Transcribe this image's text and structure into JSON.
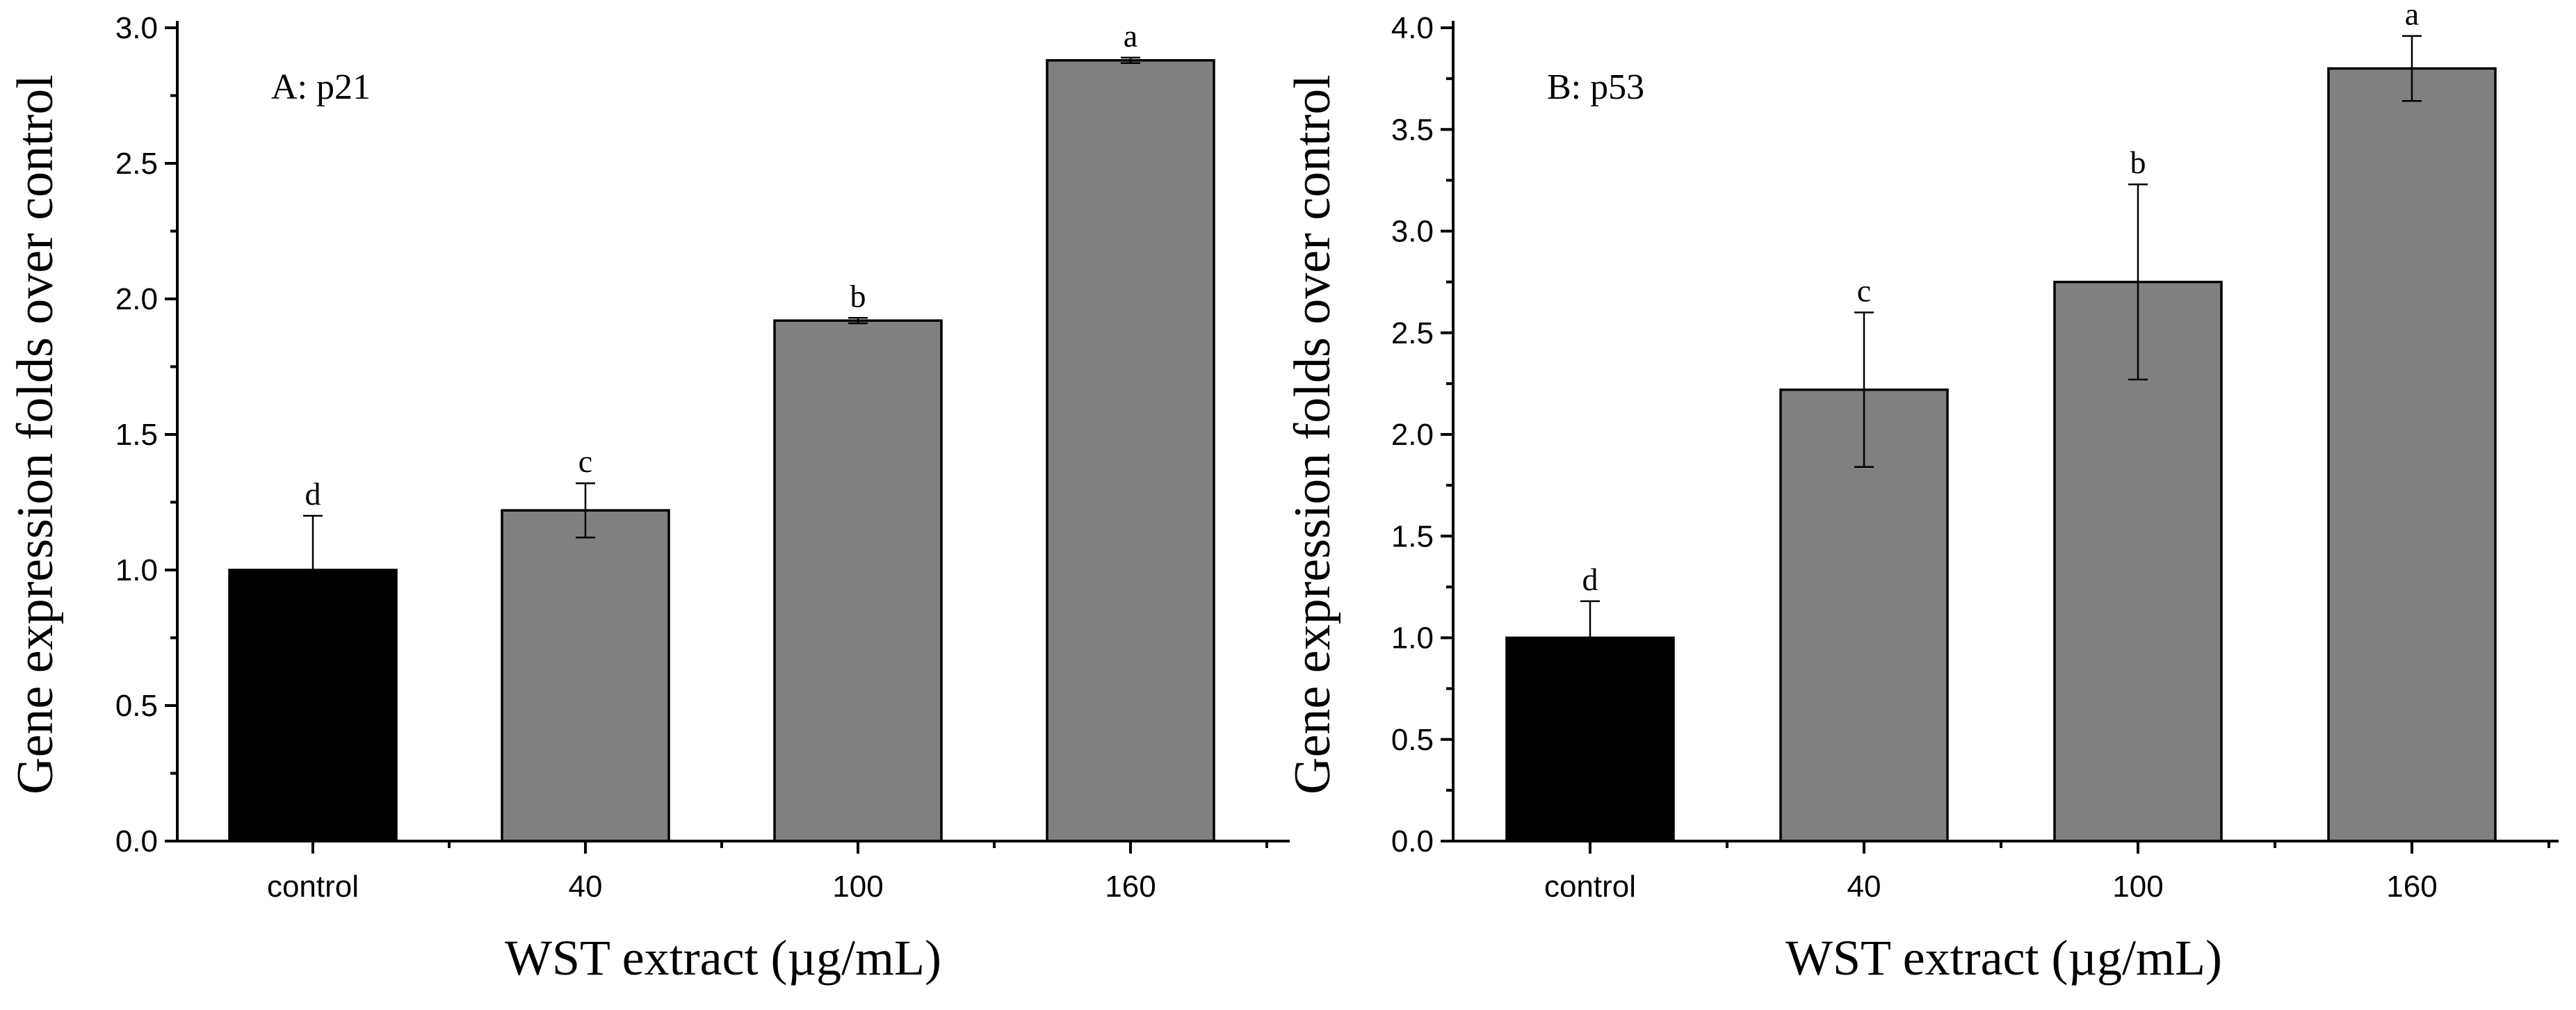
{
  "chart_data": [
    {
      "type": "bar",
      "panel_label": "A: p21",
      "xlabel": "WST extract (µg/mL)",
      "ylabel": "Gene expression folds over control",
      "categories": [
        "control",
        "40",
        "100",
        "160"
      ],
      "values": [
        1.0,
        1.22,
        1.92,
        2.88
      ],
      "errors": [
        0.2,
        0.1,
        0.01,
        0.01
      ],
      "significance": [
        "d",
        "c",
        "b",
        "a"
      ],
      "bar_colors": [
        "#000000",
        "#808080",
        "#808080",
        "#808080"
      ],
      "ylim": [
        0,
        3.0
      ],
      "yticks": [
        0.0,
        0.5,
        1.0,
        1.5,
        2.0,
        2.5,
        3.0
      ],
      "ytick_labels": [
        "0.0",
        "0.5",
        "1.0",
        "1.5",
        "2.0",
        "2.5",
        "3.0"
      ]
    },
    {
      "type": "bar",
      "panel_label": "B: p53",
      "xlabel": "WST extract (µg/mL)",
      "ylabel": "Gene expression folds over control",
      "categories": [
        "control",
        "40",
        "100",
        "160"
      ],
      "values": [
        1.0,
        2.22,
        2.75,
        3.8
      ],
      "errors": [
        0.18,
        0.38,
        0.48,
        0.16
      ],
      "significance": [
        "d",
        "c",
        "b",
        "a"
      ],
      "bar_colors": [
        "#000000",
        "#808080",
        "#808080",
        "#808080"
      ],
      "ylim": [
        0,
        4.0
      ],
      "yticks": [
        0.0,
        0.5,
        1.0,
        1.5,
        2.0,
        2.5,
        3.0,
        3.5,
        4.0
      ],
      "ytick_labels": [
        "0.0",
        "0.5",
        "1.0",
        "1.5",
        "2.0",
        "2.5",
        "3.0",
        "3.5",
        "4.0"
      ]
    }
  ]
}
